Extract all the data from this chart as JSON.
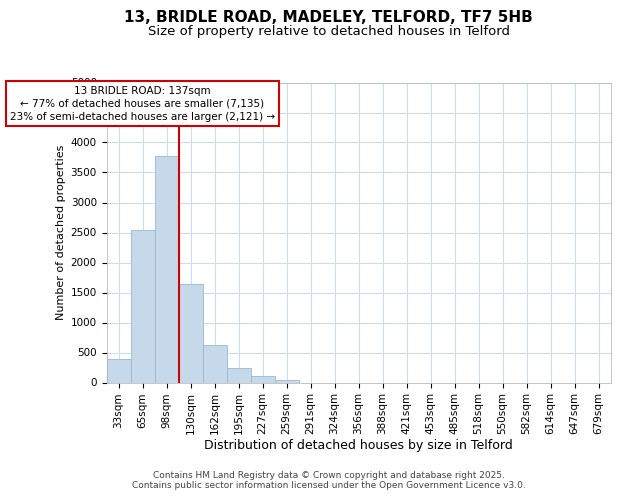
{
  "title1": "13, BRIDLE ROAD, MADELEY, TELFORD, TF7 5HB",
  "title2": "Size of property relative to detached houses in Telford",
  "xlabel": "Distribution of detached houses by size in Telford",
  "ylabel": "Number of detached properties",
  "categories": [
    "33sqm",
    "65sqm",
    "98sqm",
    "130sqm",
    "162sqm",
    "195sqm",
    "227sqm",
    "259sqm",
    "291sqm",
    "324sqm",
    "356sqm",
    "388sqm",
    "421sqm",
    "453sqm",
    "485sqm",
    "518sqm",
    "550sqm",
    "582sqm",
    "614sqm",
    "647sqm",
    "679sqm"
  ],
  "values": [
    385,
    2550,
    3780,
    1650,
    625,
    250,
    105,
    50,
    0,
    0,
    0,
    0,
    0,
    0,
    0,
    0,
    0,
    0,
    0,
    0,
    0
  ],
  "bar_color": "#c6d9ea",
  "bar_edge_color": "#9ab8d0",
  "vline_color": "#cc0000",
  "annotation_line1": "13 BRIDLE ROAD: 137sqm",
  "annotation_line2": "← 77% of detached houses are smaller (7,135)",
  "annotation_line3": "23% of semi-detached houses are larger (2,121) →",
  "annotation_box_color": "#cc0000",
  "ylim": [
    0,
    5000
  ],
  "yticks": [
    0,
    500,
    1000,
    1500,
    2000,
    2500,
    3000,
    3500,
    4000,
    4500,
    5000
  ],
  "fig_bg": "#ffffff",
  "plot_bg": "#ffffff",
  "grid_color": "#ccddf0",
  "title1_fontsize": 11,
  "title2_fontsize": 9.5,
  "xlabel_fontsize": 9,
  "ylabel_fontsize": 8,
  "tick_fontsize": 7.5,
  "footer_fontsize": 6.5,
  "footer_text": "Contains HM Land Registry data © Crown copyright and database right 2025.\nContains public sector information licensed under the Open Government Licence v3.0."
}
